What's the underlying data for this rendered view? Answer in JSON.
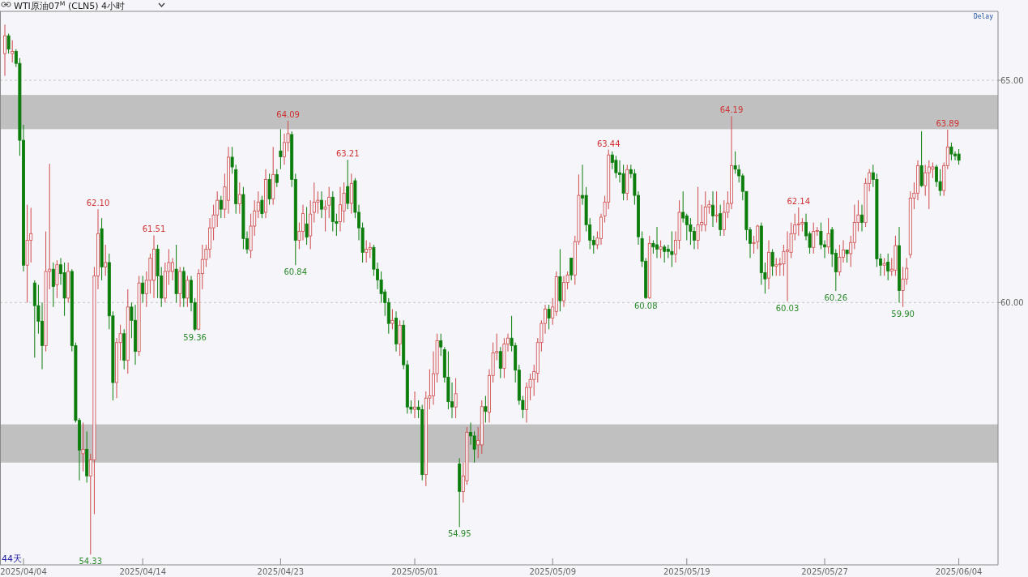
{
  "chart_data": {
    "type": "candlestick",
    "title": "WTI原油07$^{M}$ (CLN5)  4小时",
    "categories": [
      null,
      null,
      null,
      null,
      null,
      "2025/04/04",
      null,
      null,
      null,
      null,
      null,
      null,
      null,
      null,
      null,
      null,
      null,
      null,
      null,
      null,
      null,
      null,
      null,
      null,
      null,
      null,
      null,
      null,
      null,
      null,
      null,
      null,
      null,
      null,
      null,
      null,
      null,
      "2025/04/14",
      null,
      null,
      null,
      null,
      null,
      null,
      null,
      null,
      null,
      null,
      null,
      null,
      null,
      null,
      null,
      null,
      null,
      null,
      null,
      null,
      null,
      null,
      null,
      null,
      null,
      null,
      null,
      null,
      null,
      null,
      null,
      null,
      null,
      null,
      null,
      null,
      "2025/04/23",
      null,
      null,
      null,
      null,
      null,
      null,
      null,
      null,
      null,
      null,
      null,
      null,
      null,
      null,
      null,
      null,
      null,
      null,
      null,
      null,
      null,
      null,
      null,
      null,
      null,
      null,
      null,
      null,
      null,
      null,
      null,
      null,
      null,
      null,
      null,
      "2025/05/01",
      null,
      null,
      null,
      null,
      null,
      null,
      null,
      null,
      null,
      null,
      null,
      null,
      null,
      null,
      null,
      null,
      null,
      null,
      null,
      null,
      null,
      null,
      null,
      null,
      null,
      null,
      null,
      null,
      null,
      null,
      null,
      null,
      null,
      null,
      null,
      null,
      "2025/05/09",
      null,
      null,
      null,
      null,
      null,
      null,
      null,
      null,
      null,
      null,
      null,
      null,
      null,
      null,
      null,
      null,
      null,
      null,
      null,
      null,
      null,
      null,
      null,
      null,
      null,
      null,
      null,
      null,
      null,
      null,
      null,
      null,
      null,
      null,
      null,
      "2025/05/19",
      null,
      null,
      null,
      null,
      null,
      null,
      null,
      null,
      null,
      null,
      null,
      null,
      null,
      null,
      null,
      null,
      null,
      null,
      null,
      null,
      null,
      null,
      null,
      null,
      null,
      null,
      null,
      null,
      null,
      null,
      null,
      null,
      null,
      null,
      null,
      null,
      "2025/05/27",
      null,
      null,
      null,
      null,
      null,
      null,
      null,
      null,
      null,
      null,
      null,
      null,
      null,
      null,
      null,
      null,
      null,
      null,
      null,
      null,
      null,
      null,
      null,
      null,
      null,
      null,
      null,
      null,
      null,
      null,
      null,
      null,
      null,
      null,
      null,
      "2025/06/04"
    ],
    "ohlc": [
      [
        65.6,
        66.25,
        65.1,
        66.0
      ],
      [
        66.0,
        66.05,
        65.6,
        65.7
      ],
      [
        65.6,
        65.9,
        65.4,
        65.65
      ],
      [
        65.65,
        65.7,
        65.3,
        65.38
      ],
      [
        65.38,
        65.5,
        63.3,
        63.65
      ],
      [
        63.65,
        64.0,
        60.7,
        60.84
      ],
      [
        60.84,
        62.2,
        60.0,
        61.4
      ],
      [
        61.4,
        62.13,
        60.9,
        61.55
      ],
      [
        60.44,
        60.5,
        58.76,
        59.93
      ],
      [
        59.93,
        60.4,
        59.3,
        59.58
      ],
      [
        59.58,
        60.0,
        58.5,
        59.03
      ],
      [
        59.03,
        61.6,
        58.9,
        60.7
      ],
      [
        60.7,
        63.12,
        60.3,
        60.75
      ],
      [
        60.75,
        60.9,
        59.9,
        60.36
      ],
      [
        60.4,
        60.95,
        60.1,
        60.85
      ],
      [
        60.85,
        61.0,
        60.4,
        60.65
      ],
      [
        60.67,
        60.9,
        59.7,
        60.1
      ],
      [
        60.1,
        60.9,
        60.0,
        60.7
      ],
      [
        60.7,
        60.75,
        58.9,
        59.03
      ],
      [
        59.03,
        59.1,
        57.3,
        57.35
      ],
      [
        57.35,
        57.4,
        56.0,
        56.68
      ],
      [
        56.6,
        57.3,
        56.2,
        56.7
      ],
      [
        56.7,
        57.1,
        55.95,
        56.1
      ],
      [
        56.1,
        56.6,
        54.33,
        56.46
      ],
      [
        56.46,
        60.8,
        55.24,
        60.6
      ],
      [
        60.6,
        62.1,
        60.3,
        61.55
      ],
      [
        61.66,
        61.9,
        60.5,
        60.8
      ],
      [
        60.8,
        61.3,
        60.6,
        60.9
      ],
      [
        60.9,
        61.1,
        59.4,
        59.7
      ],
      [
        59.7,
        59.8,
        57.8,
        58.2
      ],
      [
        58.2,
        59.2,
        57.85,
        59.1
      ],
      [
        59.1,
        59.5,
        58.7,
        59.3
      ],
      [
        59.3,
        59.4,
        58.5,
        58.7
      ],
      [
        58.7,
        60.3,
        58.4,
        59.9
      ],
      [
        59.9,
        60.0,
        59.2,
        59.6
      ],
      [
        59.6,
        59.95,
        58.6,
        58.9
      ],
      [
        58.9,
        60.6,
        58.8,
        60.44
      ],
      [
        60.44,
        60.6,
        60.0,
        60.2
      ],
      [
        60.2,
        60.7,
        59.9,
        60.5
      ],
      [
        60.5,
        61.1,
        60.2,
        61.0
      ],
      [
        60.5,
        61.51,
        60.1,
        61.2
      ],
      [
        61.2,
        61.3,
        60.1,
        60.6
      ],
      [
        60.6,
        60.8,
        59.9,
        60.1
      ],
      [
        60.1,
        60.9,
        60.0,
        60.7
      ],
      [
        60.7,
        61.2,
        60.4,
        60.9
      ],
      [
        60.7,
        61.0,
        60.5,
        60.9
      ],
      [
        60.75,
        61.3,
        60.0,
        60.2
      ],
      [
        60.2,
        60.8,
        59.9,
        60.7
      ],
      [
        60.7,
        60.8,
        59.9,
        60.1
      ],
      [
        60.1,
        60.6,
        59.9,
        60.5
      ],
      [
        60.5,
        60.6,
        59.8,
        60.0
      ],
      [
        60.0,
        60.1,
        59.36,
        59.4
      ],
      [
        59.4,
        60.75,
        59.38,
        60.65
      ],
      [
        60.65,
        61.3,
        60.3,
        60.97
      ],
      [
        60.97,
        61.3,
        60.8,
        61.2
      ],
      [
        61.2,
        61.9,
        61.0,
        61.68
      ],
      [
        61.68,
        62.2,
        61.4,
        61.97
      ],
      [
        61.97,
        62.5,
        61.7,
        62.3
      ],
      [
        62.3,
        62.4,
        61.9,
        62.1
      ],
      [
        62.1,
        62.9,
        61.9,
        62.6
      ],
      [
        62.3,
        63.5,
        62.0,
        63.27
      ],
      [
        63.27,
        63.5,
        62.9,
        63.05
      ],
      [
        62.99,
        63.1,
        62.0,
        62.22
      ],
      [
        62.22,
        62.7,
        62.0,
        62.43
      ],
      [
        62.43,
        62.6,
        61.2,
        61.44
      ],
      [
        61.44,
        61.6,
        61.1,
        61.2
      ],
      [
        61.17,
        62.0,
        61.0,
        61.72
      ],
      [
        61.72,
        62.3,
        61.5,
        62.06
      ],
      [
        62.06,
        62.5,
        61.9,
        62.26
      ],
      [
        62.3,
        62.4,
        61.9,
        62.0
      ],
      [
        62.03,
        63.0,
        61.9,
        62.77
      ],
      [
        62.77,
        62.9,
        62.2,
        62.33
      ],
      [
        62.33,
        63.5,
        62.2,
        62.88
      ],
      [
        62.88,
        63.0,
        62.6,
        62.7
      ],
      [
        63.41,
        63.9,
        63.0,
        63.28
      ],
      [
        63.28,
        63.8,
        63.1,
        63.6
      ],
      [
        63.6,
        64.09,
        63.4,
        63.8
      ],
      [
        63.78,
        63.85,
        62.6,
        62.77
      ],
      [
        62.77,
        62.9,
        60.84,
        61.4
      ],
      [
        61.4,
        61.8,
        61.2,
        61.6
      ],
      [
        61.6,
        62.2,
        61.4,
        62.0
      ],
      [
        61.77,
        62.15,
        61.3,
        61.47
      ],
      [
        61.5,
        62.3,
        61.2,
        61.99
      ],
      [
        62.03,
        62.7,
        61.8,
        62.26
      ],
      [
        62.26,
        62.5,
        62.0,
        62.3
      ],
      [
        62.3,
        62.5,
        61.9,
        62.1
      ],
      [
        62.1,
        62.3,
        61.6,
        62.15
      ],
      [
        62.19,
        62.6,
        61.9,
        62.37
      ],
      [
        62.37,
        62.5,
        61.6,
        61.82
      ],
      [
        61.82,
        62.0,
        61.5,
        61.78
      ],
      [
        61.82,
        62.6,
        61.6,
        62.2
      ],
      [
        62.06,
        62.7,
        61.8,
        62.46
      ],
      [
        62.61,
        63.21,
        62.1,
        62.23
      ],
      [
        62.23,
        62.9,
        62.0,
        62.68
      ],
      [
        62.74,
        62.8,
        61.9,
        62.03
      ],
      [
        62.03,
        62.2,
        61.4,
        61.68
      ],
      [
        61.68,
        61.8,
        60.9,
        61.13
      ],
      [
        61.13,
        61.4,
        60.9,
        61.2
      ],
      [
        61.2,
        61.35,
        61.0,
        61.24
      ],
      [
        61.24,
        61.3,
        60.6,
        60.75
      ],
      [
        60.75,
        60.9,
        60.3,
        60.51
      ],
      [
        60.51,
        60.7,
        60.0,
        60.2
      ],
      [
        60.24,
        60.3,
        59.7,
        60.0
      ],
      [
        60.0,
        60.1,
        59.3,
        59.53
      ],
      [
        59.53,
        59.85,
        59.4,
        59.6
      ],
      [
        59.65,
        59.8,
        58.9,
        59.07
      ],
      [
        59.07,
        59.6,
        58.8,
        59.49
      ],
      [
        59.49,
        59.6,
        58.5,
        58.6
      ],
      [
        58.6,
        58.7,
        57.5,
        57.65
      ],
      [
        57.65,
        57.8,
        57.5,
        57.6
      ],
      [
        57.6,
        58.0,
        57.4,
        57.65
      ],
      [
        57.65,
        57.8,
        57.4,
        57.59
      ],
      [
        57.59,
        57.7,
        56.0,
        56.13
      ],
      [
        56.13,
        58.0,
        55.87,
        57.85
      ],
      [
        57.85,
        58.5,
        57.6,
        57.9
      ],
      [
        57.9,
        58.9,
        57.7,
        58.4
      ],
      [
        58.4,
        59.3,
        58.2,
        59.14
      ],
      [
        59.14,
        59.3,
        58.8,
        59.0
      ],
      [
        58.94,
        59.0,
        58.2,
        58.32
      ],
      [
        58.32,
        58.9,
        57.6,
        57.77
      ],
      [
        57.77,
        58.2,
        57.4,
        57.65
      ],
      [
        57.65,
        58.3,
        57.4,
        57.95
      ],
      [
        56.37,
        56.5,
        54.95,
        55.75
      ],
      [
        55.75,
        56.4,
        55.5,
        56.1
      ],
      [
        55.99,
        57.2,
        55.9,
        57.08
      ],
      [
        57.08,
        57.3,
        56.8,
        57.0
      ],
      [
        57.0,
        57.1,
        56.4,
        56.7
      ],
      [
        56.8,
        57.2,
        56.5,
        56.9
      ],
      [
        56.8,
        57.8,
        56.6,
        57.66
      ],
      [
        57.66,
        57.9,
        57.3,
        57.55
      ],
      [
        57.53,
        58.5,
        57.3,
        58.36
      ],
      [
        58.36,
        59.1,
        58.2,
        58.87
      ],
      [
        58.87,
        59.3,
        58.7,
        58.9
      ],
      [
        58.9,
        59.0,
        58.3,
        58.52
      ],
      [
        58.52,
        59.2,
        58.3,
        59.07
      ],
      [
        59.07,
        59.3,
        58.9,
        59.2
      ],
      [
        59.2,
        59.7,
        58.9,
        59.03
      ],
      [
        59.03,
        59.1,
        58.2,
        58.48
      ],
      [
        58.48,
        58.6,
        57.7,
        57.8
      ],
      [
        57.8,
        57.9,
        57.4,
        57.59
      ],
      [
        57.59,
        58.2,
        57.3,
        58.09
      ],
      [
        58.09,
        58.4,
        57.8,
        58.27
      ],
      [
        58.27,
        58.6,
        57.9,
        58.45
      ],
      [
        58.41,
        59.2,
        58.2,
        59.1
      ],
      [
        59.1,
        59.6,
        58.9,
        59.53
      ],
      [
        59.53,
        59.95,
        59.3,
        59.85
      ],
      [
        59.85,
        59.95,
        59.4,
        59.65
      ],
      [
        59.65,
        60.1,
        59.5,
        59.9
      ],
      [
        59.8,
        60.7,
        59.7,
        60.58
      ],
      [
        60.58,
        61.2,
        59.8,
        60.04
      ],
      [
        60.04,
        60.6,
        59.9,
        60.45
      ],
      [
        60.45,
        60.7,
        60.3,
        60.62
      ],
      [
        61.0,
        61.0,
        60.5,
        60.62
      ],
      [
        60.62,
        61.5,
        60.4,
        61.37
      ],
      [
        61.37,
        62.88,
        61.3,
        62.41
      ],
      [
        62.41,
        63.1,
        62.2,
        62.35
      ],
      [
        62.41,
        62.6,
        61.6,
        61.75
      ],
      [
        61.75,
        61.9,
        61.2,
        61.4
      ],
      [
        61.4,
        61.5,
        61.1,
        61.3
      ],
      [
        61.3,
        61.6,
        61.2,
        61.45
      ],
      [
        61.44,
        62.0,
        61.3,
        61.92
      ],
      [
        61.95,
        62.4,
        61.8,
        62.26
      ],
      [
        62.26,
        63.44,
        62.1,
        63.32
      ],
      [
        63.32,
        63.4,
        63.0,
        63.15
      ],
      [
        63.2,
        63.3,
        62.8,
        62.92
      ],
      [
        62.92,
        63.2,
        62.7,
        62.88
      ],
      [
        62.9,
        63.1,
        62.3,
        62.46
      ],
      [
        62.46,
        63.1,
        62.3,
        62.99
      ],
      [
        62.99,
        63.1,
        62.8,
        62.9
      ],
      [
        62.9,
        63.0,
        62.2,
        62.41
      ],
      [
        62.41,
        62.5,
        61.3,
        61.48
      ],
      [
        61.44,
        61.6,
        60.8,
        60.93
      ],
      [
        60.93,
        61.0,
        60.08,
        60.11
      ],
      [
        60.11,
        61.5,
        60.08,
        61.33
      ],
      [
        61.33,
        61.4,
        61.1,
        61.25
      ],
      [
        61.3,
        61.7,
        61.0,
        61.2
      ],
      [
        61.2,
        61.4,
        61.0,
        61.25
      ],
      [
        61.25,
        61.3,
        60.9,
        61.15
      ],
      [
        61.2,
        61.3,
        61.0,
        61.15
      ],
      [
        61.15,
        61.6,
        60.8,
        61.08
      ],
      [
        61.09,
        61.6,
        60.9,
        61.4
      ],
      [
        61.4,
        62.3,
        61.2,
        62.03
      ],
      [
        62.03,
        62.5,
        61.8,
        61.9
      ],
      [
        61.95,
        62.0,
        61.4,
        61.75
      ],
      [
        61.75,
        61.9,
        61.3,
        61.6
      ],
      [
        61.6,
        61.7,
        61.2,
        61.4
      ],
      [
        61.4,
        62.6,
        61.2,
        61.75
      ],
      [
        61.75,
        62.2,
        61.6,
        61.8
      ],
      [
        61.75,
        62.5,
        61.6,
        62.15
      ],
      [
        62.15,
        62.3,
        62.0,
        62.2
      ],
      [
        62.19,
        62.5,
        61.7,
        61.95
      ],
      [
        61.95,
        62.5,
        61.8,
        61.97
      ],
      [
        62.0,
        62.2,
        61.5,
        61.64
      ],
      [
        61.64,
        62.3,
        61.5,
        62.03
      ],
      [
        62.03,
        62.5,
        61.9,
        62.23
      ],
      [
        62.23,
        64.19,
        62.1,
        63.08
      ],
      [
        63.08,
        63.4,
        62.9,
        63.0
      ],
      [
        62.99,
        63.1,
        62.7,
        62.85
      ],
      [
        62.85,
        62.9,
        62.3,
        62.5
      ],
      [
        62.5,
        62.5,
        61.4,
        61.64
      ],
      [
        61.64,
        61.7,
        61.0,
        61.33
      ],
      [
        61.33,
        61.5,
        61.1,
        61.35
      ],
      [
        61.37,
        61.75,
        61.2,
        61.72
      ],
      [
        61.72,
        61.8,
        60.4,
        60.67
      ],
      [
        60.67,
        60.9,
        60.2,
        60.53
      ],
      [
        60.55,
        61.4,
        60.3,
        61.13
      ],
      [
        61.13,
        61.2,
        60.6,
        60.82
      ],
      [
        60.82,
        61.0,
        60.6,
        60.85
      ],
      [
        60.85,
        61.0,
        60.6,
        60.87
      ],
      [
        60.87,
        61.3,
        60.6,
        61.15
      ],
      [
        61.15,
        61.6,
        60.03,
        61.18
      ],
      [
        61.13,
        61.8,
        61.0,
        61.55
      ],
      [
        61.55,
        62.0,
        61.4,
        61.75
      ],
      [
        61.75,
        62.14,
        61.5,
        61.77
      ],
      [
        61.77,
        61.9,
        61.6,
        61.8
      ],
      [
        61.8,
        62.0,
        61.4,
        61.5
      ],
      [
        61.55,
        61.6,
        61.1,
        61.24
      ],
      [
        61.24,
        61.8,
        61.1,
        61.6
      ],
      [
        61.6,
        61.7,
        61.5,
        61.62
      ],
      [
        61.6,
        61.8,
        61.2,
        61.3
      ],
      [
        61.3,
        61.4,
        61.0,
        61.25
      ],
      [
        61.25,
        61.9,
        61.1,
        61.55
      ],
      [
        61.64,
        61.7,
        60.8,
        61.09
      ],
      [
        61.11,
        61.2,
        60.26,
        60.69
      ],
      [
        60.69,
        61.3,
        60.6,
        61.02
      ],
      [
        61.02,
        61.4,
        60.9,
        61.18
      ],
      [
        61.18,
        61.18,
        60.9,
        61.1
      ],
      [
        61.1,
        61.5,
        60.8,
        61.35
      ],
      [
        61.35,
        62.2,
        61.2,
        61.8
      ],
      [
        61.8,
        62.3,
        61.6,
        61.97
      ],
      [
        61.97,
        62.2,
        61.6,
        61.8
      ],
      [
        61.8,
        62.8,
        61.7,
        62.68
      ],
      [
        62.68,
        63.0,
        62.5,
        62.92
      ],
      [
        62.92,
        63.1,
        62.6,
        62.77
      ],
      [
        62.77,
        62.9,
        60.8,
        60.98
      ],
      [
        60.98,
        61.1,
        60.6,
        60.84
      ],
      [
        60.84,
        61.0,
        60.6,
        60.88
      ],
      [
        60.91,
        61.1,
        60.5,
        60.71
      ],
      [
        60.71,
        61.0,
        60.6,
        60.75
      ],
      [
        60.73,
        61.5,
        60.6,
        61.28
      ],
      [
        61.28,
        61.7,
        60.0,
        60.27
      ],
      [
        60.27,
        60.8,
        59.9,
        60.53
      ],
      [
        60.53,
        61.0,
        60.4,
        60.77
      ],
      [
        61.08,
        62.5,
        61.0,
        62.35
      ],
      [
        62.35,
        62.7,
        62.1,
        62.46
      ],
      [
        62.46,
        63.2,
        62.3,
        63.08
      ],
      [
        63.08,
        63.85,
        62.6,
        62.63
      ],
      [
        62.63,
        63.1,
        62.4,
        62.92
      ],
      [
        62.92,
        63.2,
        62.1,
        63.05
      ],
      [
        63.0,
        63.15,
        62.8,
        63.05
      ],
      [
        63.05,
        63.1,
        62.6,
        62.72
      ],
      [
        62.72,
        63.0,
        62.4,
        62.52
      ],
      [
        62.52,
        63.15,
        62.4,
        63.08
      ],
      [
        63.08,
        63.89,
        63.0,
        63.5
      ],
      [
        63.5,
        63.6,
        63.2,
        63.34
      ],
      [
        63.34,
        63.4,
        63.2,
        63.3
      ],
      [
        63.34,
        63.45,
        63.1,
        63.2
      ]
    ],
    "ylim": [
      54.1,
      66.55
    ],
    "yticks": [
      {
        "value": 65,
        "label": "65.00"
      },
      {
        "value": 60,
        "label": "60.00"
      }
    ],
    "grid": "y",
    "bands": [
      {
        "axis": "y",
        "from": 63.9,
        "to": 64.67,
        "color": "#c0c0c0"
      },
      {
        "axis": "y",
        "from": 56.4,
        "to": 57.26,
        "color": "#c0c0c0"
      }
    ],
    "annotations": [
      "Delay",
      "44天",
      {
        "text": "62.10",
        "y": 62.1
      },
      {
        "text": "61.51",
        "y": 61.51
      },
      {
        "text": "54.33",
        "y": 54.33
      },
      {
        "text": "59.36",
        "y": 59.36
      },
      {
        "text": "64.09",
        "y": 64.09
      },
      {
        "text": "60.84",
        "y": 60.84
      },
      {
        "text": "63.21",
        "y": 63.21
      },
      {
        "text": "54.95",
        "y": 54.95
      },
      {
        "text": "63.44",
        "y": 63.44
      },
      {
        "text": "60.08",
        "y": 60.08
      },
      {
        "text": "64.19",
        "y": 64.19
      },
      {
        "text": "62.14",
        "y": 62.14
      },
      {
        "text": "60.03",
        "y": 60.03
      },
      {
        "text": "60.26",
        "y": 60.26
      },
      {
        "text": "59.90",
        "y": 59.9
      },
      {
        "text": "63.89",
        "y": 63.89
      }
    ]
  }
}
